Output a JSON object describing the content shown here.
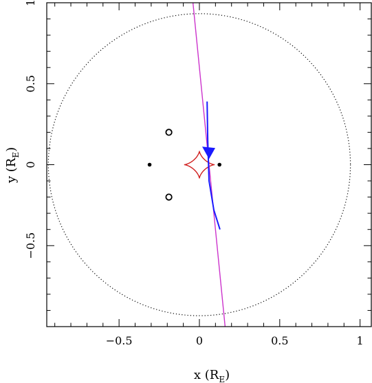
{
  "chart_data": {
    "type": "scatter",
    "xlabel": "x",
    "xlabel_unit": "(R",
    "xlabel_sub": "E",
    "xlabel_close": ")",
    "ylabel": "y",
    "ylabel_unit": "(R",
    "ylabel_sub": "E",
    "ylabel_close": ")",
    "xlim": [
      -0.95,
      1.07
    ],
    "ylim": [
      -1.0,
      1.0
    ],
    "x_ticks": [
      {
        "value": -0.5,
        "label": "−0.5"
      },
      {
        "value": 0,
        "label": "0"
      },
      {
        "value": 0.5,
        "label": "0.5"
      },
      {
        "value": 1,
        "label": "1"
      }
    ],
    "y_ticks": [
      {
        "value": -0.5,
        "label": "−0.5"
      },
      {
        "value": 0,
        "label": "0"
      },
      {
        "value": 0.5,
        "label": "0.5"
      },
      {
        "value": 1,
        "label": "1"
      }
    ],
    "einstein_ring": {
      "cx": 0.0,
      "cy": 0.0,
      "r": 0.94,
      "style": "dotted",
      "color": "#000000"
    },
    "lens_masses": [
      {
        "x": -0.31,
        "y": 0.0
      },
      {
        "x": 0.125,
        "y": 0.0
      }
    ],
    "images": [
      {
        "x": -0.19,
        "y": 0.2
      },
      {
        "x": -0.19,
        "y": -0.2
      }
    ],
    "caustic": {
      "color": "#d02020",
      "cx": 0.0,
      "cy": 0.0,
      "half_width": 0.095,
      "half_height": 0.085
    },
    "source_trajectory": {
      "color": "#cc33cc",
      "x1": -0.04,
      "y1": 1.0,
      "x2": 0.16,
      "y2": -1.0
    },
    "source_track": {
      "color": "#1a1aff",
      "points": [
        [
          0.048,
          0.39
        ],
        [
          0.052,
          0.15
        ],
        [
          0.06,
          -0.1
        ],
        [
          0.09,
          -0.28
        ],
        [
          0.128,
          -0.4
        ]
      ],
      "arrow": {
        "x": 0.06,
        "y": 0.035,
        "direction": "down"
      }
    },
    "colors": {
      "axis": "#000000"
    }
  }
}
